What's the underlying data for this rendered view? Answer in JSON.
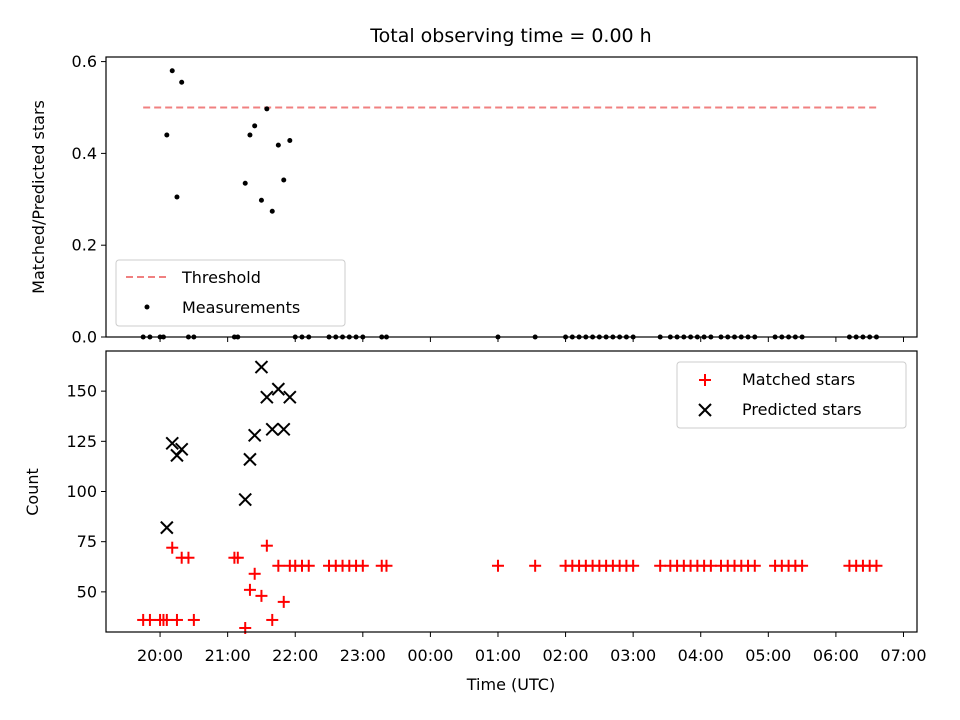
{
  "figure": {
    "title": "Total observing time = 0.00 h"
  },
  "chart_data": [
    {
      "type": "scatter",
      "ylabel": "Matched/Predicted stars",
      "xlim": [
        19.2,
        31.2
      ],
      "ylim": [
        0,
        0.61
      ],
      "yticks": [
        0.0,
        0.2,
        0.4,
        0.6
      ],
      "ytick_labels": [
        "0.0",
        "0.2",
        "0.4",
        "0.6"
      ],
      "legend_placement": "lower-left",
      "threshold": {
        "name": "Threshold",
        "value": 0.5,
        "x": [
          19.75,
          30.6
        ],
        "color": "#f08080",
        "style": "dashed"
      },
      "series": [
        {
          "name": "Measurements",
          "color": "#000000",
          "marker": "dot",
          "x": [
            19.75,
            19.85,
            20.0,
            20.05,
            20.1,
            20.18,
            20.25,
            20.32,
            20.42,
            20.5,
            21.1,
            21.15,
            21.26,
            21.33,
            21.4,
            21.5,
            21.58,
            21.66,
            21.75,
            21.83,
            21.92,
            22.0,
            22.1,
            22.2,
            22.5,
            22.6,
            22.7,
            22.8,
            22.9,
            23.0,
            23.28,
            23.35,
            25.0,
            25.55,
            26.0,
            26.1,
            26.2,
            26.3,
            26.4,
            26.5,
            26.6,
            26.7,
            26.8,
            26.9,
            27.0,
            27.4,
            27.55,
            27.65,
            27.75,
            27.85,
            27.95,
            28.05,
            28.15,
            28.3,
            28.4,
            28.5,
            28.6,
            28.7,
            28.8,
            29.1,
            29.2,
            29.3,
            29.4,
            29.5,
            30.2,
            30.3,
            30.4,
            30.5,
            30.6
          ],
          "y": [
            0,
            0,
            0,
            0,
            0.44,
            0.58,
            0.305,
            0.555,
            0,
            0,
            0,
            0,
            0.335,
            0.44,
            0.46,
            0.298,
            0.497,
            0.274,
            0.418,
            0.342,
            0.428,
            0,
            0,
            0,
            0,
            0,
            0,
            0,
            0,
            0,
            0,
            0,
            0,
            0,
            0,
            0,
            0,
            0,
            0,
            0,
            0,
            0,
            0,
            0,
            0,
            0,
            0,
            0,
            0,
            0,
            0,
            0,
            0,
            0,
            0,
            0,
            0,
            0,
            0,
            0,
            0,
            0,
            0,
            0,
            0,
            0,
            0,
            0,
            0
          ]
        }
      ]
    },
    {
      "type": "scatter",
      "ylabel": "Count",
      "xlabel": "Time (UTC)",
      "xlim": [
        19.2,
        31.2
      ],
      "ylim": [
        30,
        170
      ],
      "yticks": [
        50,
        75,
        100,
        125,
        150
      ],
      "ytick_labels": [
        "50",
        "75",
        "100",
        "125",
        "150"
      ],
      "xticks": [
        20,
        21,
        22,
        23,
        24,
        25,
        26,
        27,
        28,
        29,
        30,
        31
      ],
      "xtick_labels": [
        "20:00",
        "21:00",
        "22:00",
        "23:00",
        "00:00",
        "01:00",
        "02:00",
        "03:00",
        "04:00",
        "05:00",
        "06:00",
        "07:00"
      ],
      "legend_placement": "upper-right",
      "series": [
        {
          "name": "Matched stars",
          "color": "#ff0000",
          "marker": "plus",
          "x": [
            19.75,
            19.85,
            20.0,
            20.05,
            20.1,
            20.18,
            20.25,
            20.32,
            20.42,
            20.5,
            21.1,
            21.15,
            21.26,
            21.33,
            21.4,
            21.5,
            21.58,
            21.66,
            21.75,
            21.83,
            21.92,
            22.0,
            22.1,
            22.2,
            22.5,
            22.6,
            22.7,
            22.8,
            22.9,
            23.0,
            23.28,
            23.35,
            25.0,
            25.55,
            26.0,
            26.1,
            26.2,
            26.3,
            26.4,
            26.5,
            26.6,
            26.7,
            26.8,
            26.9,
            27.0,
            27.4,
            27.55,
            27.65,
            27.75,
            27.85,
            27.95,
            28.05,
            28.15,
            28.3,
            28.4,
            28.5,
            28.6,
            28.7,
            28.8,
            29.1,
            29.2,
            29.3,
            29.4,
            29.5,
            30.2,
            30.3,
            30.4,
            30.5,
            30.6
          ],
          "y": [
            36,
            36,
            36,
            36,
            36,
            72,
            36,
            67,
            67,
            36,
            67,
            67,
            32,
            51,
            59,
            48,
            73,
            36,
            63,
            45,
            63,
            63,
            63,
            63,
            63,
            63,
            63,
            63,
            63,
            63,
            63,
            63,
            63,
            63,
            63,
            63,
            63,
            63,
            63,
            63,
            63,
            63,
            63,
            63,
            63,
            63,
            63,
            63,
            63,
            63,
            63,
            63,
            63,
            63,
            63,
            63,
            63,
            63,
            63,
            63,
            63,
            63,
            63,
            63,
            63,
            63,
            63,
            63,
            63
          ]
        },
        {
          "name": "Predicted stars",
          "color": "#000000",
          "marker": "x",
          "x": [
            20.1,
            20.18,
            20.25,
            20.32,
            21.26,
            21.33,
            21.4,
            21.5,
            21.58,
            21.66,
            21.75,
            21.83,
            21.92
          ],
          "y": [
            82,
            124,
            118,
            121,
            96,
            116,
            128,
            162,
            147,
            131,
            151,
            131,
            147
          ]
        }
      ]
    }
  ]
}
